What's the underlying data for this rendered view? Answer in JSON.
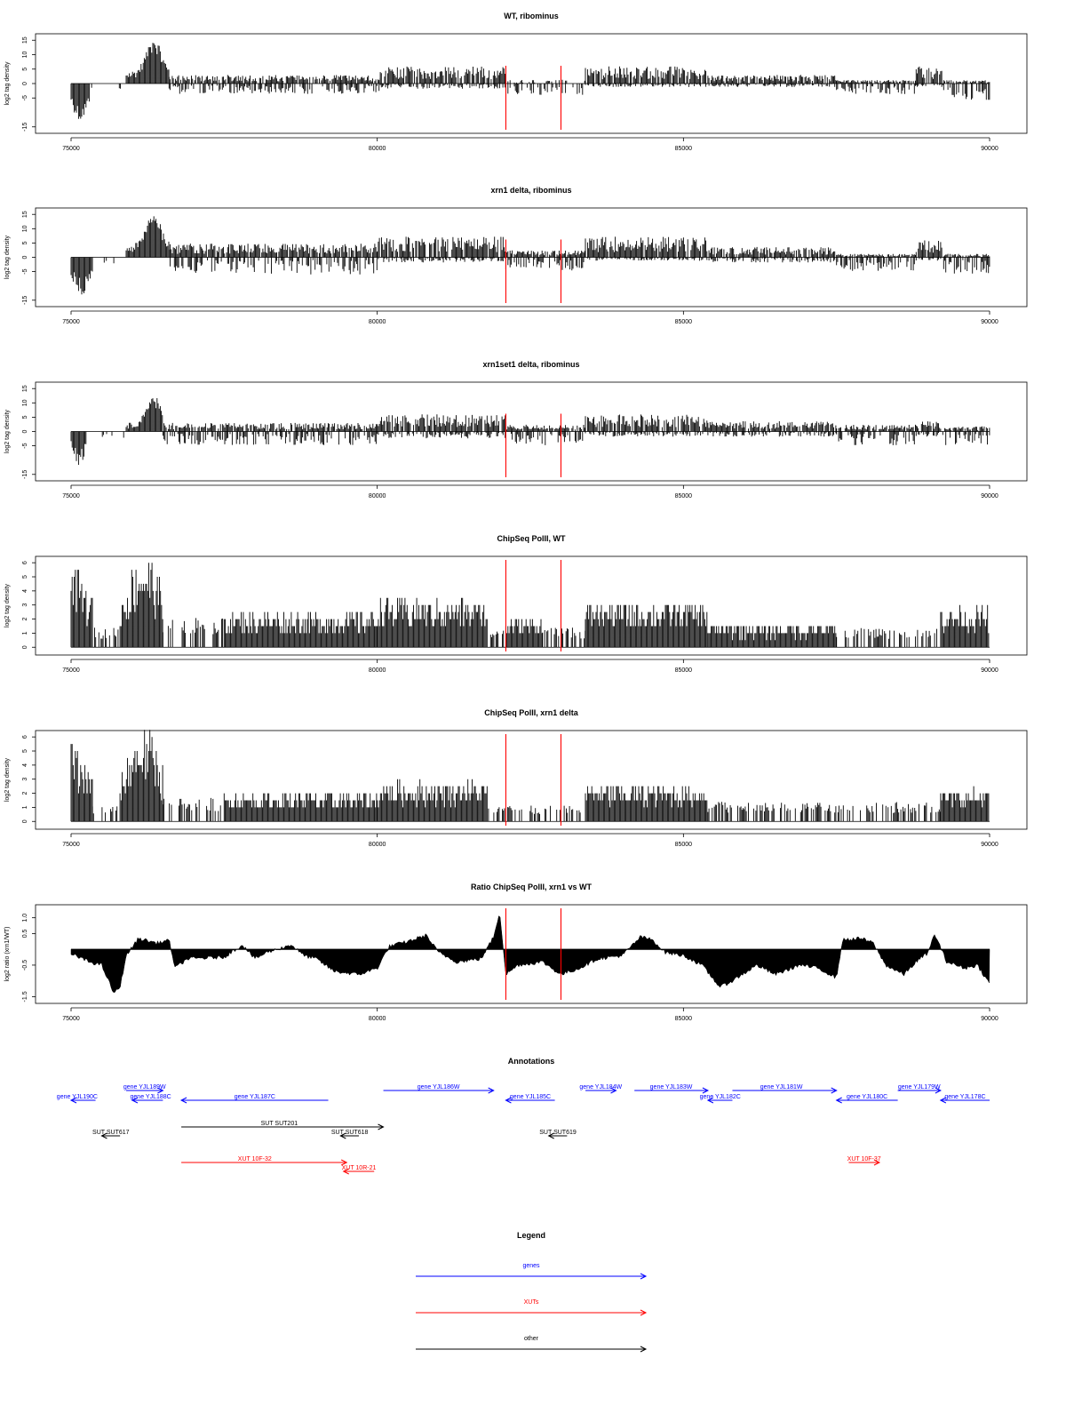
{
  "chart_data": [
    {
      "type": "bar",
      "title": "WT, ribominus",
      "ylabel": "log2 tag density",
      "xlim": [
        75000,
        90000
      ],
      "ylim": [
        -16,
        16
      ],
      "xticks": [
        75000,
        80000,
        85000,
        90000
      ],
      "yticks": [
        15,
        10,
        5,
        0,
        -5,
        -15
      ],
      "ytick_labels": [
        "15",
        "10",
        "5",
        "0",
        "-5",
        "-15"
      ],
      "marker_lines": [
        82100,
        83000
      ],
      "marker_color": "#ff0000",
      "segments": [
        {
          "x": [
            75000,
            75300
          ],
          "type": "neg",
          "base": 10
        },
        {
          "x": [
            75300,
            75900
          ],
          "type": "sparse_neg",
          "base": 1.5
        },
        {
          "x": [
            75900,
            76600
          ],
          "type": "pos_peak",
          "base": 3,
          "peak_x": 76350,
          "peak": 15
        },
        {
          "x": [
            76600,
            80050
          ],
          "type": "mixed",
          "pos": 2.5,
          "neg": 3
        },
        {
          "x": [
            80050,
            82100
          ],
          "type": "mixed",
          "pos": 5,
          "neg": 1.5
        },
        {
          "x": [
            82100,
            83400
          ],
          "type": "sparse_mixed",
          "pos": 1,
          "neg": 3
        },
        {
          "x": [
            83400,
            85400
          ],
          "type": "mixed",
          "pos": 5,
          "neg": 1
        },
        {
          "x": [
            85400,
            87500
          ],
          "type": "mixed",
          "pos": 2.5,
          "neg": 1
        },
        {
          "x": [
            87500,
            88800
          ],
          "type": "mixed",
          "pos": 1,
          "neg": 3
        },
        {
          "x": [
            88800,
            89250
          ],
          "type": "mixed",
          "pos": 5,
          "neg": 1
        },
        {
          "x": [
            89250,
            90000
          ],
          "type": "mixed",
          "pos": 1,
          "neg": 5
        }
      ]
    },
    {
      "type": "bar",
      "title": "xrn1 delta, ribominus",
      "ylabel": "log2 tag density",
      "xlim": [
        75000,
        90000
      ],
      "ylim": [
        -16,
        16
      ],
      "xticks": [
        75000,
        80000,
        85000,
        90000
      ],
      "yticks": [
        15,
        10,
        5,
        0,
        -5,
        -15
      ],
      "ytick_labels": [
        "15",
        "10",
        "5",
        "0",
        "-5",
        "-15"
      ],
      "marker_lines": [
        82100,
        83000
      ],
      "marker_color": "#ff0000",
      "segments": [
        {
          "x": [
            75000,
            75350
          ],
          "type": "neg",
          "base": 10
        },
        {
          "x": [
            75350,
            75900
          ],
          "type": "sparse_neg",
          "base": 2
        },
        {
          "x": [
            75900,
            76600
          ],
          "type": "pos_peak",
          "base": 3,
          "peak_x": 76350,
          "peak": 15
        },
        {
          "x": [
            76600,
            80000
          ],
          "type": "mixed",
          "pos": 4,
          "neg": 5
        },
        {
          "x": [
            80000,
            82100
          ],
          "type": "mixed",
          "pos": 6,
          "neg": 1.5
        },
        {
          "x": [
            82100,
            83400
          ],
          "type": "mixed",
          "pos": 2,
          "neg": 4
        },
        {
          "x": [
            83400,
            85400
          ],
          "type": "mixed",
          "pos": 6,
          "neg": 1
        },
        {
          "x": [
            85400,
            87500
          ],
          "type": "mixed",
          "pos": 3,
          "neg": 1.5
        },
        {
          "x": [
            87500,
            88800
          ],
          "type": "mixed",
          "pos": 1,
          "neg": 4
        },
        {
          "x": [
            88800,
            89250
          ],
          "type": "mixed",
          "pos": 5,
          "neg": 1
        },
        {
          "x": [
            89250,
            90000
          ],
          "type": "mixed",
          "pos": 1,
          "neg": 5
        }
      ]
    },
    {
      "type": "bar",
      "title": "xrn1set1 delta, ribominus",
      "ylabel": "log2 tag density",
      "xlim": [
        75000,
        90000
      ],
      "ylim": [
        -16,
        16
      ],
      "xticks": [
        75000,
        80000,
        85000,
        90000
      ],
      "yticks": [
        15,
        10,
        5,
        0,
        -5,
        -15
      ],
      "ytick_labels": [
        "15",
        "10",
        "5",
        "0",
        "-5",
        "-15"
      ],
      "marker_lines": [
        82100,
        83000
      ],
      "marker_color": "#ff0000",
      "segments": [
        {
          "x": [
            75000,
            75250
          ],
          "type": "neg",
          "base": 9
        },
        {
          "x": [
            75250,
            75900
          ],
          "type": "sparse_neg",
          "base": 1.5
        },
        {
          "x": [
            75900,
            76500
          ],
          "type": "pos_peak",
          "base": 2,
          "peak_x": 76350,
          "peak": 12
        },
        {
          "x": [
            76500,
            80000
          ],
          "type": "mixed",
          "pos": 2.5,
          "neg": 4
        },
        {
          "x": [
            80000,
            82100
          ],
          "type": "mixed",
          "pos": 5,
          "neg": 2
        },
        {
          "x": [
            82100,
            83400
          ],
          "type": "mixed",
          "pos": 2,
          "neg": 4
        },
        {
          "x": [
            83400,
            85400
          ],
          "type": "mixed",
          "pos": 5,
          "neg": 1.5
        },
        {
          "x": [
            85400,
            87500
          ],
          "type": "mixed",
          "pos": 3,
          "neg": 1.5
        },
        {
          "x": [
            87500,
            88800
          ],
          "type": "mixed",
          "pos": 2,
          "neg": 4
        },
        {
          "x": [
            88800,
            89250
          ],
          "type": "mixed",
          "pos": 3,
          "neg": 1.5
        },
        {
          "x": [
            89250,
            90000
          ],
          "type": "mixed",
          "pos": 1.5,
          "neg": 4
        }
      ]
    },
    {
      "type": "bar",
      "title": "ChipSeq PolII, WT",
      "ylabel": "log2 tag density",
      "xlim": [
        75000,
        90000
      ],
      "ylim": [
        -0.3,
        6.2
      ],
      "xticks": [
        75000,
        80000,
        85000,
        90000
      ],
      "yticks": [
        0,
        1,
        2,
        3,
        4,
        5,
        6
      ],
      "ytick_labels": [
        "0",
        "1",
        "2",
        "3",
        "4",
        "5",
        "6"
      ],
      "marker_lines": [
        82100,
        83000
      ],
      "marker_color": "#ff0000",
      "segments": [
        {
          "x": [
            75000,
            75350
          ],
          "type": "dense",
          "level": 4.5,
          "decay": true
        },
        {
          "x": [
            75350,
            75800
          ],
          "type": "sparse_pos",
          "level": 1
        },
        {
          "x": [
            75800,
            76500
          ],
          "type": "dense",
          "level": 4.5,
          "rise": true
        },
        {
          "x": [
            76500,
            77500
          ],
          "type": "sparse_pos",
          "level": 1.5
        },
        {
          "x": [
            77500,
            80000
          ],
          "type": "dense",
          "level": 2.2
        },
        {
          "x": [
            80000,
            81800
          ],
          "type": "dense",
          "level": 3
        },
        {
          "x": [
            81800,
            82100
          ],
          "type": "sparse_pos",
          "level": 1
        },
        {
          "x": [
            82100,
            82700
          ],
          "type": "dense",
          "level": 1.8
        },
        {
          "x": [
            82700,
            83400
          ],
          "type": "sparse_pos",
          "level": 1
        },
        {
          "x": [
            83400,
            85400
          ],
          "type": "dense",
          "level": 2.8
        },
        {
          "x": [
            85400,
            87500
          ],
          "type": "dense",
          "level": 1.5
        },
        {
          "x": [
            87500,
            89200
          ],
          "type": "sparse_pos",
          "level": 1
        },
        {
          "x": [
            89200,
            90000
          ],
          "type": "dense",
          "level": 2.5
        }
      ]
    },
    {
      "type": "bar",
      "title": "ChipSeq PolII, xrn1 delta",
      "ylabel": "log2 tag density",
      "xlim": [
        75000,
        90000
      ],
      "ylim": [
        -0.3,
        6.2
      ],
      "xticks": [
        75000,
        80000,
        85000,
        90000
      ],
      "yticks": [
        0,
        1,
        2,
        3,
        4,
        5,
        6
      ],
      "ytick_labels": [
        "0",
        "1",
        "2",
        "3",
        "4",
        "5",
        "6"
      ],
      "marker_lines": [
        82100,
        83000
      ],
      "marker_color": "#ff0000",
      "segments": [
        {
          "x": [
            75000,
            75350
          ],
          "type": "dense",
          "level": 4.2,
          "decay": true
        },
        {
          "x": [
            75350,
            75800
          ],
          "type": "sparse_pos",
          "level": 0.8
        },
        {
          "x": [
            75800,
            76500
          ],
          "type": "dense",
          "level": 4.5,
          "rise": true
        },
        {
          "x": [
            76500,
            77500
          ],
          "type": "sparse_pos",
          "level": 1.2
        },
        {
          "x": [
            77500,
            80000
          ],
          "type": "dense",
          "level": 1.8
        },
        {
          "x": [
            80000,
            81800
          ],
          "type": "dense",
          "level": 2.5
        },
        {
          "x": [
            81800,
            83400
          ],
          "type": "sparse_pos",
          "level": 0.8
        },
        {
          "x": [
            83400,
            85400
          ],
          "type": "dense",
          "level": 2.3
        },
        {
          "x": [
            85400,
            89200
          ],
          "type": "sparse_pos",
          "level": 1
        },
        {
          "x": [
            89200,
            90000
          ],
          "type": "dense",
          "level": 2
        }
      ]
    },
    {
      "type": "area",
      "title": "Ratio ChipSeq PolII, xrn1 vs WT",
      "ylabel": "log2 ratio (xrn1/WT)",
      "xlim": [
        75000,
        90000
      ],
      "ylim": [
        -1.6,
        1.3
      ],
      "xticks": [
        75000,
        80000,
        85000,
        90000
      ],
      "yticks": [
        1,
        0.5,
        -0.5,
        -1.5
      ],
      "ytick_labels": [
        "1.0",
        "0.5",
        "-0.5",
        "-1.5"
      ],
      "marker_lines": [
        82100,
        83000
      ],
      "marker_color": "#ff0000",
      "baseline": 0,
      "profile": [
        [
          75000,
          -0.15
        ],
        [
          75300,
          -0.4
        ],
        [
          75500,
          -0.5
        ],
        [
          75700,
          -1.4
        ],
        [
          75800,
          -1.2
        ],
        [
          75900,
          -0.2
        ],
        [
          76100,
          0.35
        ],
        [
          76400,
          0.2
        ],
        [
          76600,
          0.3
        ],
        [
          76700,
          -0.6
        ],
        [
          76900,
          -0.3
        ],
        [
          77500,
          -0.25
        ],
        [
          77800,
          0.15
        ],
        [
          78000,
          -0.3
        ],
        [
          78200,
          -0.1
        ],
        [
          78600,
          0.15
        ],
        [
          78800,
          -0.2
        ],
        [
          79000,
          -0.3
        ],
        [
          79300,
          -0.7
        ],
        [
          79700,
          -0.8
        ],
        [
          80000,
          -0.6
        ],
        [
          80200,
          0.1
        ],
        [
          80500,
          0.25
        ],
        [
          80800,
          0.45
        ],
        [
          81000,
          -0.1
        ],
        [
          81300,
          -0.4
        ],
        [
          81700,
          -0.3
        ],
        [
          81900,
          0.4
        ],
        [
          82000,
          1.2
        ],
        [
          82100,
          -0.8
        ],
        [
          82300,
          -0.5
        ],
        [
          82700,
          -0.4
        ],
        [
          83000,
          -0.8
        ],
        [
          83300,
          -0.6
        ],
        [
          83600,
          -0.3
        ],
        [
          84000,
          -0.2
        ],
        [
          84300,
          0.4
        ],
        [
          84500,
          0.3
        ],
        [
          84700,
          -0.1
        ],
        [
          85000,
          -0.2
        ],
        [
          85300,
          -0.5
        ],
        [
          85600,
          -1.2
        ],
        [
          85800,
          -1.0
        ],
        [
          86200,
          -0.5
        ],
        [
          86500,
          -0.8
        ],
        [
          86900,
          -0.5
        ],
        [
          87200,
          -0.6
        ],
        [
          87500,
          -0.9
        ],
        [
          87600,
          0.3
        ],
        [
          87900,
          0.35
        ],
        [
          88100,
          0.2
        ],
        [
          88300,
          -0.5
        ],
        [
          88600,
          -0.8
        ],
        [
          88800,
          -0.4
        ],
        [
          89000,
          -0.1
        ],
        [
          89100,
          0.5
        ],
        [
          89300,
          -0.4
        ],
        [
          89600,
          -0.6
        ],
        [
          89800,
          -0.5
        ],
        [
          90000,
          -1.1
        ]
      ]
    }
  ],
  "annotations": {
    "title": "Annotations",
    "xlim": [
      75000,
      90000
    ],
    "items": [
      {
        "label": "gene YJL190C",
        "category": "genes",
        "strand": "-",
        "start": 75000,
        "end": 75400,
        "lane": 2,
        "label_x": 75100
      },
      {
        "label": "gene YJL189W",
        "category": "genes",
        "strand": "+",
        "start": 75900,
        "end": 76500,
        "lane": 1,
        "label_x": 76200
      },
      {
        "label": "gene YJL188C",
        "category": "genes",
        "strand": "-",
        "start": 76000,
        "end": 76500,
        "lane": 2,
        "label_x": 76300
      },
      {
        "label": "gene YJL187C",
        "category": "genes",
        "strand": "-",
        "start": 76800,
        "end": 79200,
        "lane": 2,
        "label_x": 78000
      },
      {
        "label": "gene YJL186W",
        "category": "genes",
        "strand": "+",
        "start": 80100,
        "end": 81900,
        "lane": 1,
        "label_x": 81000
      },
      {
        "label": "gene YJL185C",
        "category": "genes",
        "strand": "-",
        "start": 82100,
        "end": 82900,
        "lane": 2,
        "label_x": 82500
      },
      {
        "label": "gene YJL184W",
        "category": "genes",
        "strand": "+",
        "start": 83400,
        "end": 83900,
        "lane": 1,
        "label_x": 83650
      },
      {
        "label": "gene YJL183W",
        "category": "genes",
        "strand": "+",
        "start": 84200,
        "end": 85400,
        "lane": 1,
        "label_x": 84800
      },
      {
        "label": "gene YJL182C",
        "category": "genes",
        "strand": "-",
        "start": 85400,
        "end": 85800,
        "lane": 2,
        "label_x": 85600
      },
      {
        "label": "gene YJL181W",
        "category": "genes",
        "strand": "+",
        "start": 85800,
        "end": 87500,
        "lane": 1,
        "label_x": 86600
      },
      {
        "label": "gene YJL180C",
        "category": "genes",
        "strand": "-",
        "start": 87500,
        "end": 88500,
        "lane": 2,
        "label_x": 88000
      },
      {
        "label": "gene YJL179W",
        "category": "genes",
        "strand": "+",
        "start": 88500,
        "end": 89200,
        "lane": 1,
        "label_x": 88850
      },
      {
        "label": "gene YJL178C",
        "category": "genes",
        "strand": "-",
        "start": 89200,
        "end": 90000,
        "lane": 2,
        "label_x": 89600
      },
      {
        "label": "SUT SUT201",
        "category": "other",
        "strand": "+",
        "start": 76800,
        "end": 80100,
        "lane": 3,
        "label_x": 78400
      },
      {
        "label": "SUT SUT617",
        "category": "other",
        "strand": "-",
        "start": 75500,
        "end": 75800,
        "lane": 4,
        "label_x": 75650
      },
      {
        "label": "SUT SUT618",
        "category": "other",
        "strand": "-",
        "start": 79400,
        "end": 79700,
        "lane": 4,
        "label_x": 79550
      },
      {
        "label": "SUT SUT619",
        "category": "other",
        "strand": "-",
        "start": 82800,
        "end": 83100,
        "lane": 4,
        "label_x": 82950
      },
      {
        "label": "XUT 10F-32",
        "category": "XUTs",
        "strand": "+",
        "start": 76800,
        "end": 79500,
        "lane": 5,
        "label_x": 78000
      },
      {
        "label": "XUT 10R-21",
        "category": "XUTs",
        "strand": "-",
        "start": 79450,
        "end": 79950,
        "lane": 6,
        "label_x": 79700
      },
      {
        "label": "XUT 10F-37",
        "category": "XUTs",
        "strand": "+",
        "start": 87700,
        "end": 88200,
        "lane": 5,
        "label_x": 87950
      }
    ]
  },
  "legend": {
    "title": "Legend",
    "items": [
      {
        "label": "genes",
        "color": "#0000ff"
      },
      {
        "label": "XUTs",
        "color": "#ff0000"
      },
      {
        "label": "other",
        "color": "#000000"
      }
    ]
  },
  "colors": {
    "genes": "#0000ff",
    "XUTs": "#ff0000",
    "other": "#000000",
    "bars": "#000000",
    "marker": "#ff0000"
  }
}
